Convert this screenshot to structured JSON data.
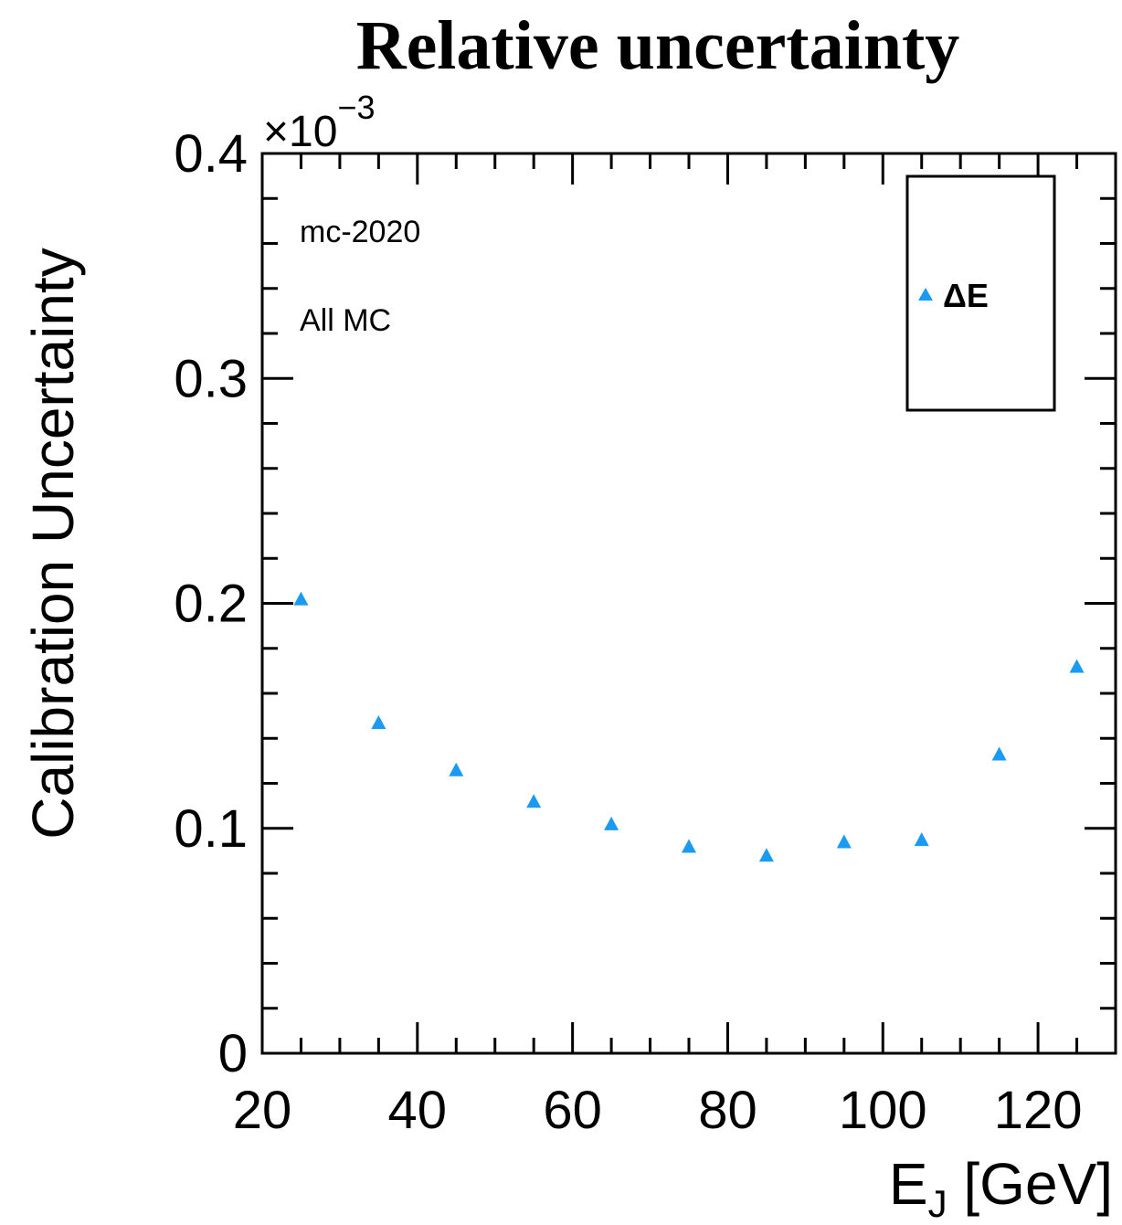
{
  "chart_data": {
    "type": "scatter",
    "title": "Relative uncertainty",
    "xlabel_main": "E",
    "xlabel_sub": "J",
    "xlabel_unit": "[GeV]",
    "ylabel": "Calibration Uncertainty",
    "y_multiplier_base": "×10",
    "y_multiplier_exp": "−3",
    "xlim": [
      20,
      130
    ],
    "ylim": [
      0,
      0.4
    ],
    "x_ticks": [
      20,
      40,
      60,
      80,
      100,
      120
    ],
    "x_tick_labels": [
      "20",
      "40",
      "60",
      "80",
      "100",
      "120"
    ],
    "y_ticks": [
      0,
      0.1,
      0.2,
      0.3,
      0.4
    ],
    "y_tick_labels": [
      "0",
      "0.1",
      "0.2",
      "0.3",
      "0.4"
    ],
    "annotations": [
      "mc-2020",
      "All MC"
    ],
    "legend_position": "top-right",
    "series": [
      {
        "name": "ΔE",
        "marker": "triangle",
        "color": "#1a9af0",
        "x": [
          25,
          35,
          45,
          55,
          65,
          75,
          85,
          95,
          105,
          115,
          125
        ],
        "y": [
          0.202,
          0.147,
          0.126,
          0.112,
          0.102,
          0.092,
          0.088,
          0.094,
          0.095,
          0.133,
          0.172
        ]
      }
    ]
  }
}
